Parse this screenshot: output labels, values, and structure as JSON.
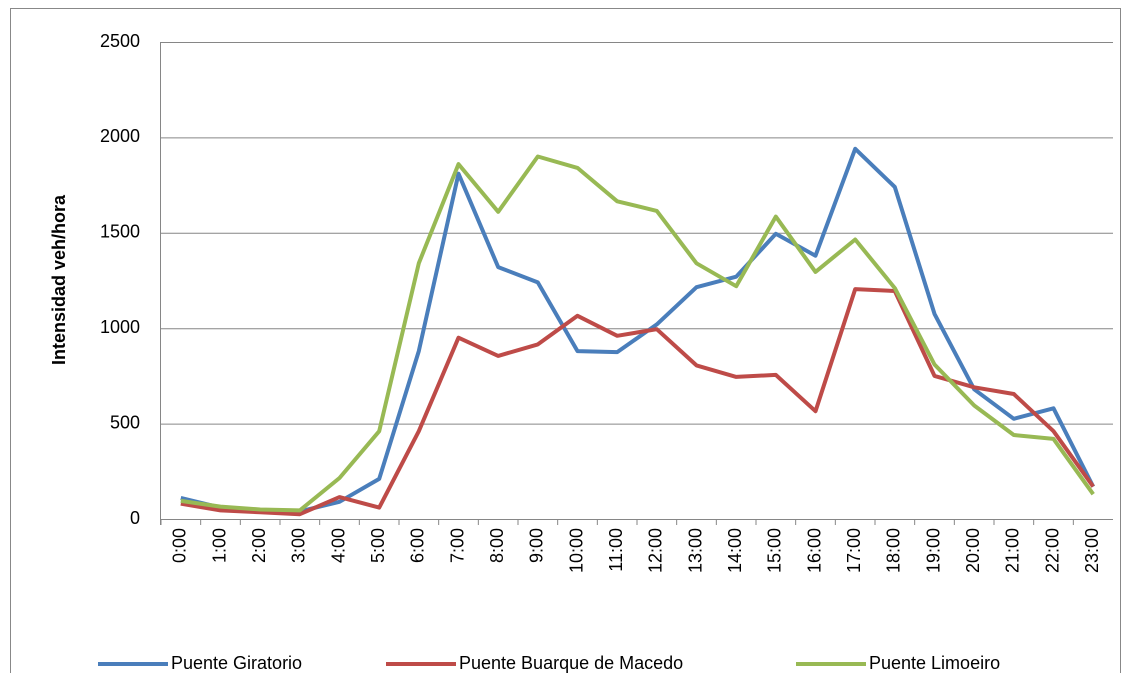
{
  "chart_data": {
    "type": "line",
    "y_label": "Intensidad veh/hora",
    "categories": [
      "0:00",
      "1:00",
      "2:00",
      "3:00",
      "4:00",
      "5:00",
      "6:00",
      "7:00",
      "8:00",
      "9:00",
      "10:00",
      "11:00",
      "12:00",
      "13:00",
      "14:00",
      "15:00",
      "16:00",
      "17:00",
      "18:00",
      "19:00",
      "20:00",
      "21:00",
      "22:00",
      "23:00"
    ],
    "series": [
      {
        "name": "Puente Giratorio",
        "color": "#4a7ebb",
        "values": [
          110,
          60,
          45,
          40,
          90,
          210,
          880,
          1810,
          1320,
          1240,
          880,
          875,
          1020,
          1215,
          1270,
          1495,
          1380,
          1940,
          1740,
          1075,
          680,
          525,
          580,
          170
        ]
      },
      {
        "name": "Puente Buarque de Macedo",
        "color": "#be4b48",
        "values": [
          80,
          45,
          35,
          25,
          115,
          60,
          460,
          950,
          855,
          915,
          1065,
          960,
          995,
          805,
          745,
          755,
          565,
          1205,
          1195,
          750,
          690,
          655,
          460,
          170
        ]
      },
      {
        "name": "Puente Limoeiro",
        "color": "#98b954",
        "values": [
          95,
          65,
          50,
          45,
          215,
          460,
          1340,
          1860,
          1610,
          1900,
          1840,
          1665,
          1615,
          1340,
          1220,
          1585,
          1295,
          1465,
          1210,
          810,
          595,
          440,
          420,
          130
        ]
      }
    ],
    "ylim": [
      0,
      2500
    ],
    "yticks": [
      0,
      500,
      1000,
      1500,
      2000,
      2500
    ],
    "grid": true,
    "legend": "bottom"
  }
}
